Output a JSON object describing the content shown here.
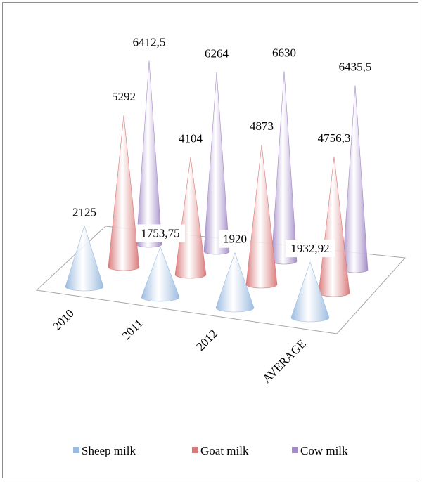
{
  "chart_data": {
    "type": "bar",
    "style": "3d-cone",
    "categories": [
      "2010",
      "2011",
      "2012",
      "AVERAGE"
    ],
    "series": [
      {
        "name": "Sheep milk",
        "color": "#9bbbe0",
        "values": [
          2125,
          1753.75,
          1920,
          1932.92
        ],
        "labels": [
          "2125",
          "1753,75",
          "1920",
          "1932,92"
        ]
      },
      {
        "name": "Goat milk",
        "color": "#d9797a",
        "values": [
          5292,
          4104,
          4873,
          4756.3
        ],
        "labels": [
          "5292",
          "4104",
          "4873",
          "4756,3"
        ]
      },
      {
        "name": "Cow milk",
        "color": "#a38bc6",
        "values": [
          6412.5,
          6264,
          6630,
          6435.5
        ],
        "labels": [
          "6412,5",
          "6264",
          "6630",
          "6435,5"
        ]
      }
    ],
    "legend_position": "bottom",
    "grid": false
  }
}
